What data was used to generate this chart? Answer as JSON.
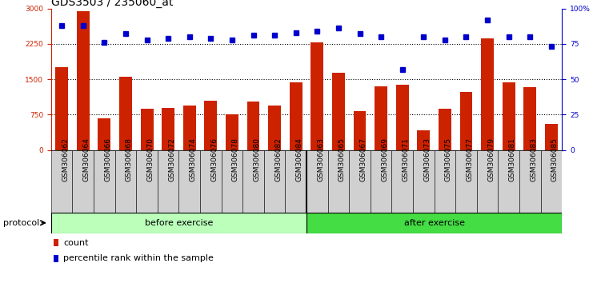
{
  "title": "GDS3503 / 235060_at",
  "categories": [
    "GSM306062",
    "GSM306064",
    "GSM306066",
    "GSM306068",
    "GSM306070",
    "GSM306072",
    "GSM306074",
    "GSM306076",
    "GSM306078",
    "GSM306080",
    "GSM306082",
    "GSM306084",
    "GSM306063",
    "GSM306065",
    "GSM306067",
    "GSM306069",
    "GSM306071",
    "GSM306073",
    "GSM306075",
    "GSM306077",
    "GSM306079",
    "GSM306081",
    "GSM306083",
    "GSM306085"
  ],
  "counts": [
    1750,
    2950,
    680,
    1560,
    880,
    900,
    950,
    1050,
    750,
    1020,
    950,
    1430,
    2280,
    1640,
    820,
    1350,
    1390,
    420,
    870,
    1230,
    2370,
    1430,
    1330,
    560
  ],
  "percentile_ranks": [
    88,
    88,
    76,
    82,
    78,
    79,
    80,
    79,
    78,
    81,
    81,
    83,
    84,
    86,
    82,
    80,
    57,
    80,
    78,
    80,
    92,
    80,
    80,
    73
  ],
  "before_count": 12,
  "after_count": 12,
  "bar_color": "#cc2200",
  "dot_color": "#0000cc",
  "before_color": "#bbffbb",
  "after_color": "#44dd44",
  "protocol_label": "protocol",
  "before_label": "before exercise",
  "after_label": "after exercise",
  "legend_count_label": "count",
  "legend_pct_label": "percentile rank within the sample",
  "left_ylim": [
    0,
    3000
  ],
  "right_ylim": [
    0,
    100
  ],
  "left_yticks": [
    0,
    750,
    1500,
    2250,
    3000
  ],
  "right_yticks": [
    0,
    25,
    50,
    75,
    100
  ],
  "left_ytick_labels": [
    "0",
    "750",
    "1500",
    "2250",
    "3000"
  ],
  "right_ytick_labels": [
    "0",
    "25",
    "50",
    "75",
    "100%"
  ],
  "grid_values": [
    750,
    1500,
    2250
  ],
  "title_fontsize": 10,
  "tick_fontsize": 6.5,
  "label_fontsize": 8,
  "cat_label_fontsize": 6.5
}
